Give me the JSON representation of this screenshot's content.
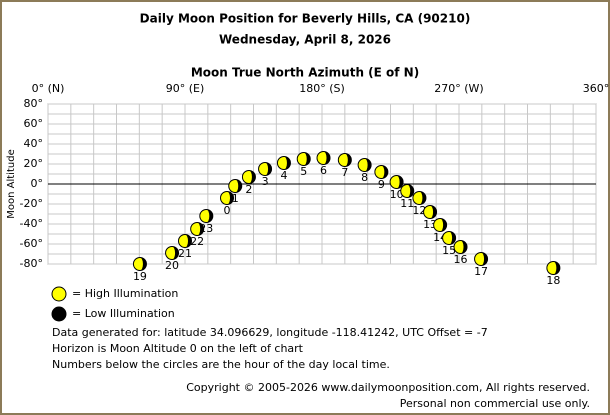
{
  "chart_data": {
    "type": "scatter",
    "title": "Daily Moon Position for Beverly Hills, CA (90210)",
    "subtitle": "Wednesday, April 8, 2026",
    "x_label": "Moon True North Azimuth (E of N)",
    "y_label": "Moon Altitude",
    "xlim": [
      0,
      360
    ],
    "ylim": [
      -80,
      80
    ],
    "xticks": [
      {
        "value": 0,
        "label": "0° (N)"
      },
      {
        "value": 90,
        "label": "90° (E)"
      },
      {
        "value": 180,
        "label": "180° (S)"
      },
      {
        "value": 270,
        "label": "270° (W)"
      },
      {
        "value": 360,
        "label": "360°"
      }
    ],
    "yticks": [
      {
        "value": 80,
        "label": "80°"
      },
      {
        "value": 60,
        "label": "60°"
      },
      {
        "value": 40,
        "label": "40°"
      },
      {
        "value": 20,
        "label": "20°"
      },
      {
        "value": 0,
        "label": "0°"
      },
      {
        "value": -20,
        "label": "-20°"
      },
      {
        "value": -40,
        "label": "-40°"
      },
      {
        "value": -60,
        "label": "-60°"
      },
      {
        "value": -80,
        "label": "-80°"
      }
    ],
    "minor_xticks": [
      15,
      30,
      45,
      60,
      75,
      105,
      120,
      135,
      150,
      165,
      195,
      210,
      225,
      240,
      255,
      285,
      300,
      315,
      330,
      345
    ],
    "minor_yticks": [
      70,
      50,
      30,
      10,
      -10,
      -30,
      -50,
      -70
    ],
    "grid": true,
    "series": [
      {
        "name": "Moon",
        "color": "#ffff00",
        "x": [
          117.6,
          123,
          132,
          142.6,
          155,
          168,
          181,
          195,
          208,
          219,
          229,
          236,
          244,
          251,
          257.6,
          263.5,
          271,
          284.5,
          332,
          60.4,
          81.5,
          90,
          98,
          104
        ],
        "values": [
          -14,
          -2,
          7,
          15,
          21,
          25,
          26,
          24,
          19,
          12,
          2,
          -7,
          -14,
          -28,
          -41,
          -54,
          -63,
          -75,
          -84,
          -80,
          -69,
          -57,
          -45,
          -32
        ],
        "labels": [
          "0",
          "1",
          "2",
          "3",
          "4",
          "5",
          "6",
          "7",
          "8",
          "9",
          "10",
          "11",
          "12",
          "13",
          "14",
          "15",
          "16",
          "17",
          "18",
          "19",
          "20",
          "21",
          "22",
          "23"
        ]
      }
    ],
    "legend": [
      {
        "name": "= High Illumination",
        "color": "#ffff00"
      },
      {
        "name": "= Low Illumination",
        "color": "#000000"
      }
    ],
    "notes": [
      "Data generated for: latitude 34.096629, longitude -118.41242, UTC Offset = -7",
      "Horizon is Moon Altitude 0 on the left of chart",
      "Numbers below the circles are the hour of the day local time."
    ],
    "copyright": [
      "Copyright © 2005-2026 www.dailymoonposition.com, All rights reserved.",
      "Personal non commercial use only."
    ]
  }
}
